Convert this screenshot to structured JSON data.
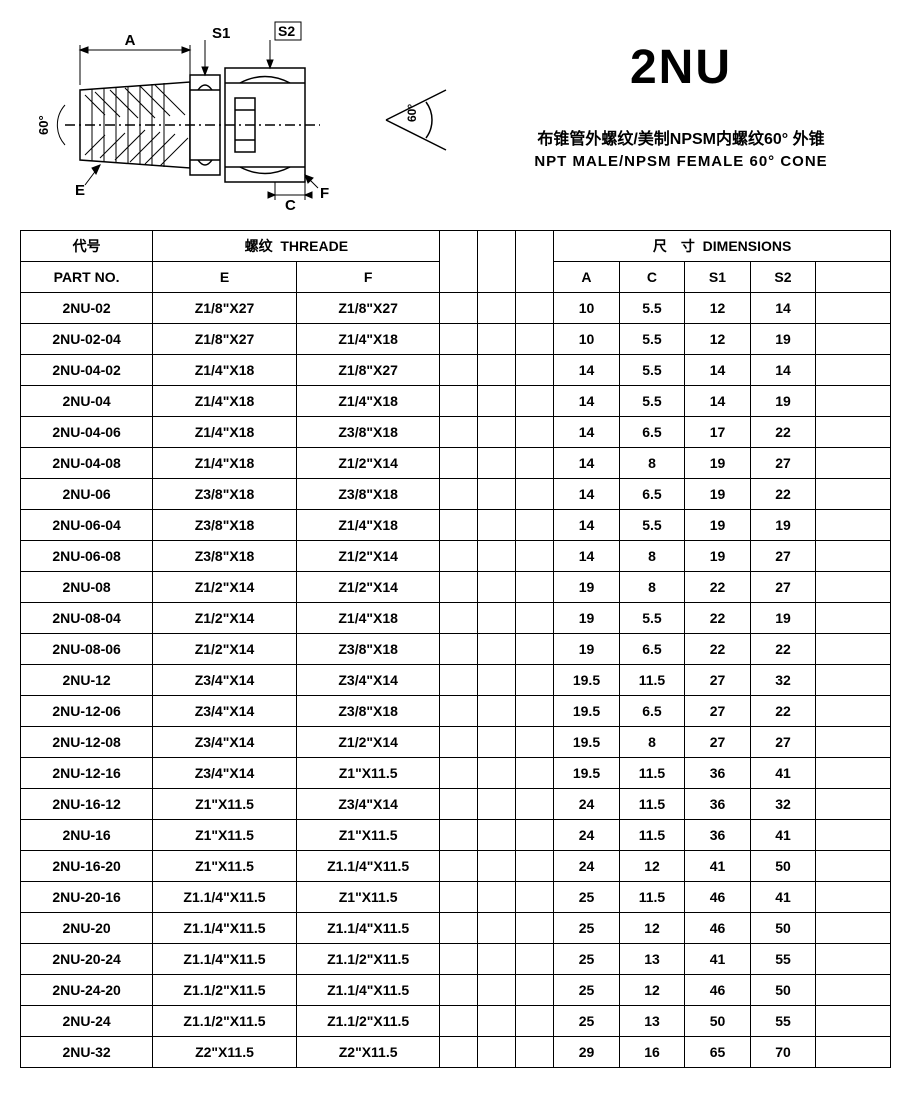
{
  "title": {
    "main": "2NU",
    "cn": "布锥管外螺纹/美制NPSM内螺纹60° 外锥",
    "en": "NPT MALE/NPSM FEMALE 60° CONE"
  },
  "diagram_labels": {
    "A": "A",
    "S1": "S1",
    "S2": "S2",
    "E": "E",
    "C": "C",
    "F": "F",
    "angle": "60°"
  },
  "headers": {
    "part_cn": "代号",
    "part_en": "PART NO.",
    "thread_cn": "螺纹",
    "thread_en": "THREADE",
    "dim_cn": "尺　寸",
    "dim_en": "DIMENSIONS",
    "E": "E",
    "F": "F",
    "A": "A",
    "C": "C",
    "S1": "S1",
    "S2": "S2"
  },
  "rows": [
    {
      "p": "2NU-02",
      "e": "Z1/8\"X27",
      "f": "Z1/8\"X27",
      "a": "10",
      "c": "5.5",
      "s1": "12",
      "s2": "14"
    },
    {
      "p": "2NU-02-04",
      "e": "Z1/8\"X27",
      "f": "Z1/4\"X18",
      "a": "10",
      "c": "5.5",
      "s1": "12",
      "s2": "19"
    },
    {
      "p": "2NU-04-02",
      "e": "Z1/4\"X18",
      "f": "Z1/8\"X27",
      "a": "14",
      "c": "5.5",
      "s1": "14",
      "s2": "14"
    },
    {
      "p": "2NU-04",
      "e": "Z1/4\"X18",
      "f": "Z1/4\"X18",
      "a": "14",
      "c": "5.5",
      "s1": "14",
      "s2": "19"
    },
    {
      "p": "2NU-04-06",
      "e": "Z1/4\"X18",
      "f": "Z3/8\"X18",
      "a": "14",
      "c": "6.5",
      "s1": "17",
      "s2": "22"
    },
    {
      "p": "2NU-04-08",
      "e": "Z1/4\"X18",
      "f": "Z1/2\"X14",
      "a": "14",
      "c": "8",
      "s1": "19",
      "s2": "27"
    },
    {
      "p": "2NU-06",
      "e": "Z3/8\"X18",
      "f": "Z3/8\"X18",
      "a": "14",
      "c": "6.5",
      "s1": "19",
      "s2": "22"
    },
    {
      "p": "2NU-06-04",
      "e": "Z3/8\"X18",
      "f": "Z1/4\"X18",
      "a": "14",
      "c": "5.5",
      "s1": "19",
      "s2": "19"
    },
    {
      "p": "2NU-06-08",
      "e": "Z3/8\"X18",
      "f": "Z1/2\"X14",
      "a": "14",
      "c": "8",
      "s1": "19",
      "s2": "27"
    },
    {
      "p": "2NU-08",
      "e": "Z1/2\"X14",
      "f": "Z1/2\"X14",
      "a": "19",
      "c": "8",
      "s1": "22",
      "s2": "27"
    },
    {
      "p": "2NU-08-04",
      "e": "Z1/2\"X14",
      "f": "Z1/4\"X18",
      "a": "19",
      "c": "5.5",
      "s1": "22",
      "s2": "19"
    },
    {
      "p": "2NU-08-06",
      "e": "Z1/2\"X14",
      "f": "Z3/8\"X18",
      "a": "19",
      "c": "6.5",
      "s1": "22",
      "s2": "22"
    },
    {
      "p": "2NU-12",
      "e": "Z3/4\"X14",
      "f": "Z3/4\"X14",
      "a": "19.5",
      "c": "11.5",
      "s1": "27",
      "s2": "32"
    },
    {
      "p": "2NU-12-06",
      "e": "Z3/4\"X14",
      "f": "Z3/8\"X18",
      "a": "19.5",
      "c": "6.5",
      "s1": "27",
      "s2": "22"
    },
    {
      "p": "2NU-12-08",
      "e": "Z3/4\"X14",
      "f": "Z1/2\"X14",
      "a": "19.5",
      "c": "8",
      "s1": "27",
      "s2": "27"
    },
    {
      "p": "2NU-12-16",
      "e": "Z3/4\"X14",
      "f": "Z1\"X11.5",
      "a": "19.5",
      "c": "11.5",
      "s1": "36",
      "s2": "41"
    },
    {
      "p": "2NU-16-12",
      "e": "Z1\"X11.5",
      "f": "Z3/4\"X14",
      "a": "24",
      "c": "11.5",
      "s1": "36",
      "s2": "32"
    },
    {
      "p": "2NU-16",
      "e": "Z1\"X11.5",
      "f": "Z1\"X11.5",
      "a": "24",
      "c": "11.5",
      "s1": "36",
      "s2": "41"
    },
    {
      "p": "2NU-16-20",
      "e": "Z1\"X11.5",
      "f": "Z1.1/4\"X11.5",
      "a": "24",
      "c": "12",
      "s1": "41",
      "s2": "50"
    },
    {
      "p": "2NU-20-16",
      "e": "Z1.1/4\"X11.5",
      "f": "Z1\"X11.5",
      "a": "25",
      "c": "11.5",
      "s1": "46",
      "s2": "41"
    },
    {
      "p": "2NU-20",
      "e": "Z1.1/4\"X11.5",
      "f": "Z1.1/4\"X11.5",
      "a": "25",
      "c": "12",
      "s1": "46",
      "s2": "50"
    },
    {
      "p": "2NU-20-24",
      "e": "Z1.1/4\"X11.5",
      "f": "Z1.1/2\"X11.5",
      "a": "25",
      "c": "13",
      "s1": "41",
      "s2": "55"
    },
    {
      "p": "2NU-24-20",
      "e": "Z1.1/2\"X11.5",
      "f": "Z1.1/4\"X11.5",
      "a": "25",
      "c": "12",
      "s1": "46",
      "s2": "50"
    },
    {
      "p": "2NU-24",
      "e": "Z1.1/2\"X11.5",
      "f": "Z1.1/2\"X11.5",
      "a": "25",
      "c": "13",
      "s1": "50",
      "s2": "55"
    },
    {
      "p": "2NU-32",
      "e": "Z2\"X11.5",
      "f": "Z2\"X11.5",
      "a": "29",
      "c": "16",
      "s1": "65",
      "s2": "70"
    }
  ]
}
